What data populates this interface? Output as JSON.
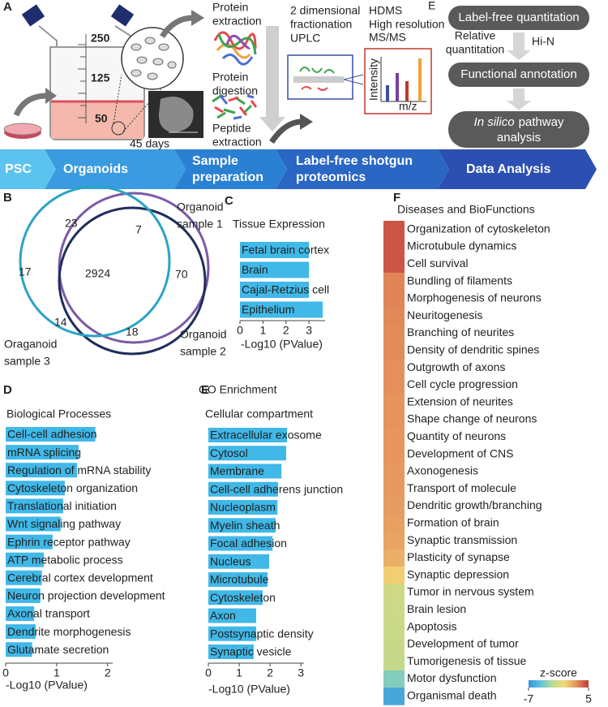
{
  "figure": {
    "panel_a": {
      "letter": "A",
      "flask_marks": [
        250,
        125,
        50
      ],
      "duration": "45 days",
      "protein_extraction": [
        "Protein",
        "extraction"
      ],
      "protein_digestion": [
        "Protein",
        "digestion"
      ],
      "peptide_extraction": [
        "Peptide",
        "extraction"
      ],
      "fractionation": [
        "2 dimensional",
        "fractionation",
        "UPLC"
      ],
      "ms": {
        "hdms": "HDMS",
        "superscript": "E",
        "lines": [
          "High resolution",
          "MS/MS"
        ],
        "y_axis": "Intensity",
        "x_axis": "m/z"
      },
      "label_free_quantitation": "Label-free quantitation",
      "relative_quantitation": [
        "Relative",
        "quantitation"
      ],
      "hi_n": "Hi-N",
      "functional_annotation": "Functional annotation",
      "pathway": {
        "italic": "In silico",
        "rest": "pathway",
        "line2": "analysis"
      },
      "stages": [
        [
          "PSC"
        ],
        [
          "Organoids"
        ],
        [
          "Sample",
          "preparation"
        ],
        [
          "Label-free shotgun",
          "proteomics"
        ],
        [
          "Data Analysis"
        ]
      ],
      "stage_colors": [
        "#5cc3ee",
        "#3a9be0",
        "#2a80d2",
        "#2a66c4",
        "#2c4fb2"
      ]
    },
    "panel_b": {
      "letter": "B",
      "sets": [
        {
          "label": [
            "Organoid",
            "sample 1"
          ],
          "color": "#7a5ba6"
        },
        {
          "label": [
            "Organoid",
            "sample 2"
          ],
          "color": "#1f2d5c"
        },
        {
          "label": [
            "Oraganoid",
            "sample 3"
          ],
          "color": "#2ba3c6"
        }
      ],
      "counts": [
        23,
        7,
        17,
        2924,
        70,
        14,
        18
      ]
    }
  },
  "chart_data": [
    {
      "panel": "C",
      "type": "bar",
      "orientation": "horizontal",
      "title": "Tissue Expression",
      "categories": [
        "Fetal brain cortex",
        "Brain",
        "Cajal-Retzius cell",
        "Epithelium"
      ],
      "values": [
        3.0,
        3.0,
        3.0,
        3.6
      ],
      "color": "#40b8e8",
      "xlabel": "-Log10 (PValue)",
      "xlim": [
        0,
        3.7
      ],
      "xticks": [
        0,
        1,
        2,
        3
      ]
    },
    {
      "panel": "D",
      "type": "bar",
      "orientation": "horizontal",
      "header": "GO Enrichment",
      "title": "Biological Processes",
      "categories": [
        "Cell-cell adhesion",
        "mRNA splicing",
        "Regulation of mRNA stability",
        "Cytoskeleton organization",
        "Translational initiation",
        "Wnt signaling pathway",
        "Ephrin receptor pathway",
        "ATP metabolic process",
        "Cerebral cortex development",
        "Neuron projection development",
        "Axonal transport",
        "Dendrite morphogenesis",
        "Glutamate secretion"
      ],
      "values": [
        1.76,
        1.43,
        1.4,
        1.16,
        1.13,
        1.08,
        0.92,
        0.75,
        0.71,
        0.68,
        0.56,
        0.59,
        0.52
      ],
      "color": "#40b8e8",
      "xlabel": "-Log10 (PValue)",
      "xlim": [
        0,
        2.1
      ],
      "xticks": [
        0,
        1,
        2
      ]
    },
    {
      "panel": "E",
      "type": "bar",
      "orientation": "horizontal",
      "title": "Cellular compartment",
      "categories": [
        "Extracellular exosome",
        "Cytosol",
        "Membrane",
        "Cell-cell adherens junction",
        "Nucleoplasm",
        "Myelin sheath",
        "Focal adhesion",
        "Nucleus",
        "Microtubule",
        "Cytoskeleton",
        "Axon",
        "Postsynaptic density",
        "Synaptic vesicle"
      ],
      "values": [
        2.55,
        2.52,
        2.37,
        2.26,
        2.24,
        2.18,
        2.08,
        1.97,
        1.92,
        1.76,
        1.55,
        1.55,
        1.47
      ],
      "color": "#40b8e8",
      "xlabel": "-Log10 (PValue)",
      "xlim": [
        0,
        3.1
      ],
      "xticks": [
        0,
        1,
        2,
        3
      ]
    },
    {
      "panel": "F",
      "type": "heatmap",
      "title": "Diseases and BioFunctions",
      "categories": [
        "Organization of cytoskeleton",
        "Microtubule dynamics",
        "Cell survival",
        "Bundling of filaments",
        "Morphogenesis of neurons",
        "Neuritogenesis",
        "Branching of neurites",
        "Density of dendritic spines",
        "Outgrowth of axons",
        "Cell cycle progression",
        "Extension of neurites",
        "Shape change of neurons",
        "Quantity of neurons",
        "Development of CNS",
        "Axonogenesis",
        "Transport of molecule",
        "Dendritic growth/branching",
        "Formation of brain",
        "Synaptic transmission",
        "Plasticity of synapse",
        "Synaptic depression",
        "Tumor in nervous system",
        "Brain lesion",
        "Apoptosis",
        "Development of tumor",
        "Tumorigenesis of tissue",
        "Motor dysfunction",
        "Organismal death"
      ],
      "values": [
        4.2,
        4.2,
        4.2,
        2.9,
        2.9,
        2.8,
        2.7,
        2.7,
        2.6,
        2.6,
        2.5,
        2.5,
        2.4,
        2.4,
        2.3,
        2.3,
        2.2,
        2.1,
        2.0,
        1.6,
        0.6,
        -1.4,
        -1.5,
        -1.6,
        -1.7,
        -1.8,
        -3.6,
        -6.0
      ],
      "colorbar_label": "z-score",
      "zlim": [
        -7,
        5
      ],
      "zticks": [
        -7,
        5
      ],
      "colormap": [
        "#3a8fd9",
        "#5cc5dc",
        "#bcd98e",
        "#f3da78",
        "#e5905c",
        "#c0393b"
      ]
    }
  ]
}
